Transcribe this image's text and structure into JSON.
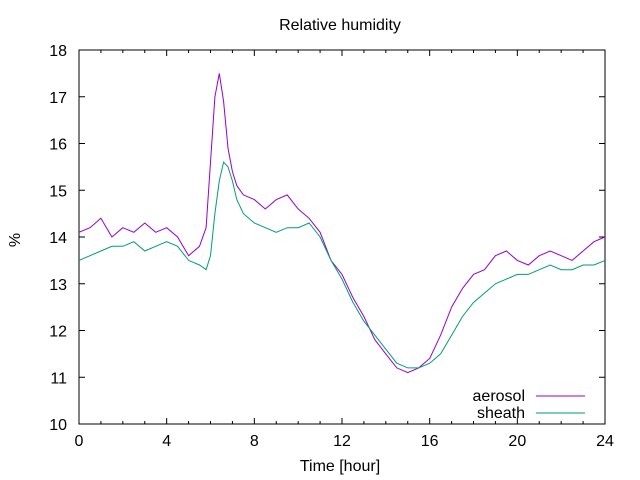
{
  "chart_data": {
    "type": "line",
    "title": "Relative humidity",
    "xlabel": "Time [hour]",
    "ylabel": "%",
    "xlim": [
      0,
      24
    ],
    "ylim": [
      10,
      18
    ],
    "x_ticks": [
      "0",
      "4",
      "8",
      "12",
      "16",
      "20",
      "24"
    ],
    "y_ticks": [
      "10",
      "11",
      "12",
      "13",
      "14",
      "15",
      "16",
      "17",
      "18"
    ],
    "grid": false,
    "legend_position": "bottom-right",
    "series": [
      {
        "name": "aerosol",
        "color": "#9400d3",
        "x": [
          0,
          0.5,
          1,
          1.5,
          2,
          2.5,
          3,
          3.5,
          4,
          4.5,
          5,
          5.5,
          5.8,
          6,
          6.2,
          6.4,
          6.6,
          6.8,
          7,
          7.2,
          7.5,
          8,
          8.5,
          9,
          9.5,
          10,
          10.5,
          11,
          11.5,
          12,
          12.5,
          13,
          13.5,
          14,
          14.5,
          15,
          15.5,
          16,
          16.5,
          17,
          17.5,
          18,
          18.5,
          19,
          19.5,
          20,
          20.5,
          21,
          21.5,
          22,
          22.5,
          23,
          23.5,
          24
        ],
        "y": [
          14.1,
          14.2,
          14.4,
          14.0,
          14.2,
          14.1,
          14.3,
          14.1,
          14.2,
          14.0,
          13.6,
          13.8,
          14.2,
          15.6,
          17.0,
          17.5,
          16.9,
          15.9,
          15.4,
          15.1,
          14.9,
          14.8,
          14.6,
          14.8,
          14.9,
          14.6,
          14.4,
          14.1,
          13.5,
          13.2,
          12.7,
          12.3,
          11.8,
          11.5,
          11.2,
          11.1,
          11.2,
          11.4,
          11.9,
          12.5,
          12.9,
          13.2,
          13.3,
          13.6,
          13.7,
          13.5,
          13.4,
          13.6,
          13.7,
          13.6,
          13.5,
          13.7,
          13.9,
          14.0
        ]
      },
      {
        "name": "sheath",
        "color": "#009e73",
        "x": [
          0,
          0.5,
          1,
          1.5,
          2,
          2.5,
          3,
          3.5,
          4,
          4.5,
          5,
          5.5,
          5.8,
          6,
          6.2,
          6.4,
          6.6,
          6.8,
          7,
          7.2,
          7.5,
          8,
          8.5,
          9,
          9.5,
          10,
          10.5,
          11,
          11.5,
          12,
          12.5,
          13,
          13.5,
          14,
          14.5,
          15,
          15.5,
          16,
          16.5,
          17,
          17.5,
          18,
          18.5,
          19,
          19.5,
          20,
          20.5,
          21,
          21.5,
          22,
          22.5,
          23,
          23.5,
          24
        ],
        "y": [
          13.5,
          13.6,
          13.7,
          13.8,
          13.8,
          13.9,
          13.7,
          13.8,
          13.9,
          13.8,
          13.5,
          13.4,
          13.3,
          13.6,
          14.5,
          15.2,
          15.6,
          15.5,
          15.2,
          14.8,
          14.5,
          14.3,
          14.2,
          14.1,
          14.2,
          14.2,
          14.3,
          14.0,
          13.5,
          13.1,
          12.6,
          12.2,
          11.9,
          11.6,
          11.3,
          11.2,
          11.2,
          11.3,
          11.5,
          11.9,
          12.3,
          12.6,
          12.8,
          13.0,
          13.1,
          13.2,
          13.2,
          13.3,
          13.4,
          13.3,
          13.3,
          13.4,
          13.4,
          13.5
        ]
      }
    ]
  }
}
